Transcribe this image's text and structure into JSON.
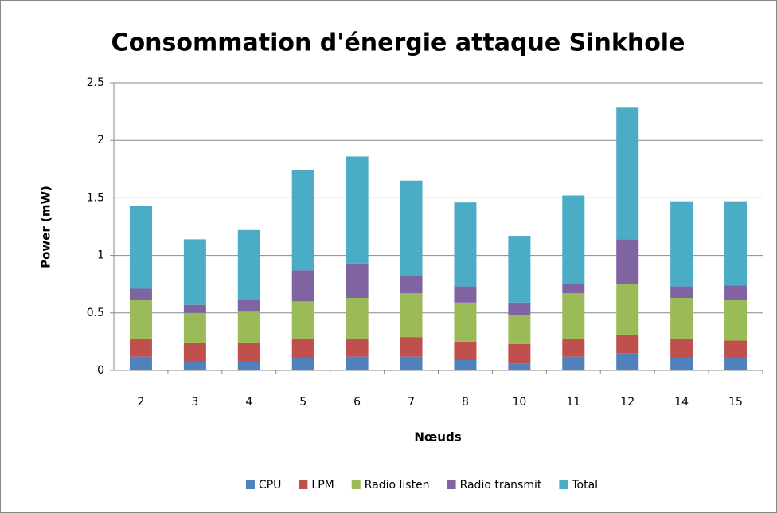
{
  "chart_data": {
    "type": "stacked_bar",
    "title": "Consommation d'énergie attaque Sinkhole",
    "x_label": "Nœuds",
    "y_label": "Power (mW)",
    "categories": [
      "2",
      "3",
      "4",
      "5",
      "6",
      "7",
      "8",
      "10",
      "11",
      "12",
      "14",
      "15"
    ],
    "series": [
      {
        "name": "CPU",
        "color": "#4f81bd",
        "values": [
          0.12,
          0.07,
          0.07,
          0.11,
          0.12,
          0.12,
          0.09,
          0.06,
          0.12,
          0.15,
          0.11,
          0.11
        ]
      },
      {
        "name": "LPM",
        "color": "#c0504d",
        "values": [
          0.15,
          0.17,
          0.17,
          0.16,
          0.15,
          0.17,
          0.16,
          0.17,
          0.15,
          0.16,
          0.16,
          0.15
        ]
      },
      {
        "name": "Radio listen",
        "color": "#9bbb59",
        "values": [
          0.34,
          0.26,
          0.27,
          0.33,
          0.36,
          0.38,
          0.34,
          0.25,
          0.4,
          0.44,
          0.36,
          0.35
        ]
      },
      {
        "name": "Radio transmit",
        "color": "#8064a2",
        "values": [
          0.1,
          0.07,
          0.1,
          0.27,
          0.3,
          0.15,
          0.14,
          0.11,
          0.09,
          0.39,
          0.1,
          0.13
        ]
      },
      {
        "name": "Total",
        "color": "#4bacc6",
        "values": [
          0.72,
          0.57,
          0.61,
          0.87,
          0.93,
          0.83,
          0.73,
          0.58,
          0.76,
          1.15,
          0.74,
          0.73
        ]
      }
    ],
    "ylim": [
      0,
      2.5
    ],
    "yticks": [
      0,
      0.5,
      1,
      1.5,
      2,
      2.5
    ],
    "grid": true,
    "legend": "bottom"
  }
}
